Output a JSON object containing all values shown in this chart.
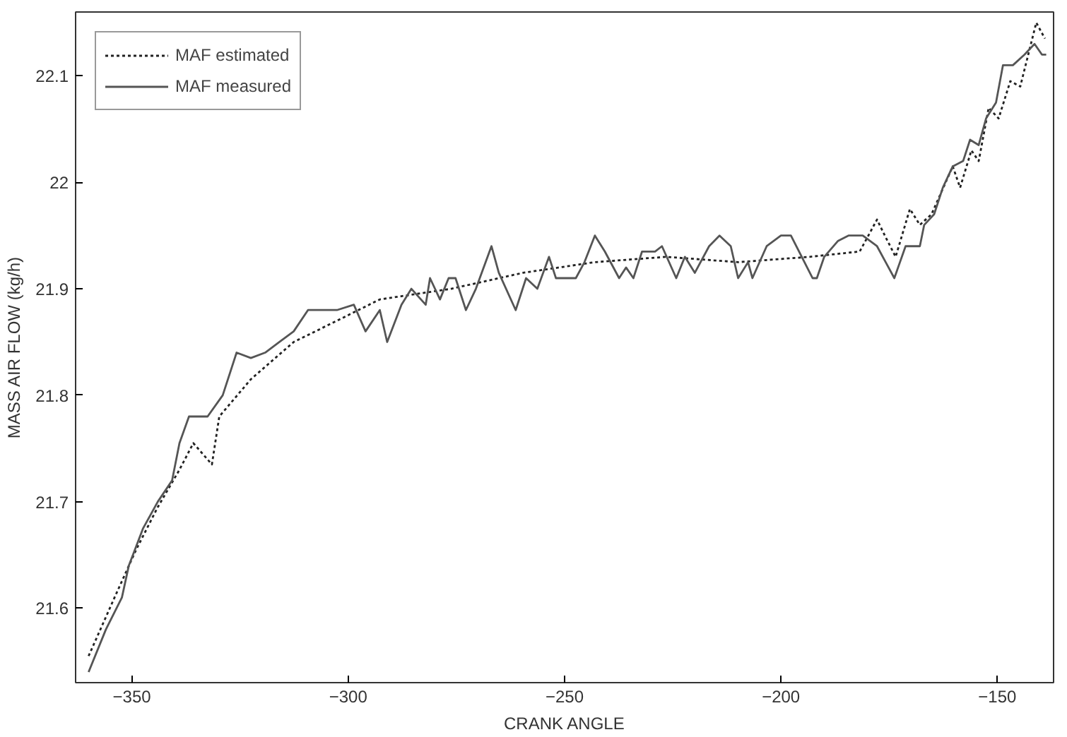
{
  "chart_data": {
    "type": "line",
    "xlabel": "CRANK ANGLE",
    "ylabel": "MASS AIR FLOW (kg/h)",
    "xlim": [
      -363,
      -137
    ],
    "ylim": [
      21.53,
      22.16
    ],
    "xticks": [
      -350,
      -300,
      -250,
      -200,
      -150
    ],
    "yticks": [
      21.6,
      21.7,
      21.8,
      21.9,
      22,
      22.1
    ],
    "grid": false,
    "legend": "top left",
    "marker": "none",
    "series": [
      {
        "name": "MAF estimated",
        "color": "#222222",
        "line_style": "dotted",
        "x": [
          -360,
          -354,
          -349,
          -344,
          -339,
          -335.8,
          -331.5,
          -329.8,
          -322.5,
          -312.6,
          -302.6,
          -292.7,
          -276.2,
          -259.6,
          -243,
          -226.5,
          -209.9,
          -193.4,
          -181.8,
          -177.8,
          -176,
          -173.5,
          -170.2,
          -167.9,
          -165.2,
          -160.3,
          -158.6,
          -156,
          -154.3,
          -152,
          -149.7,
          -147,
          -144.7,
          -141,
          -139
        ],
        "values": [
          21.555,
          21.61,
          21.655,
          21.695,
          21.73,
          21.755,
          21.735,
          21.78,
          21.815,
          21.85,
          21.87,
          21.89,
          21.9,
          21.915,
          21.925,
          21.93,
          21.925,
          21.93,
          21.935,
          21.965,
          21.95,
          21.93,
          21.975,
          21.96,
          21.97,
          22.015,
          21.995,
          22.03,
          22.02,
          22.07,
          22.06,
          22.095,
          22.09,
          22.15,
          22.135
        ]
      },
      {
        "name": "MAF measured",
        "color": "#555555",
        "line_style": "solid",
        "x": [
          -360,
          -356,
          -352.3,
          -350.7,
          -347.4,
          -344,
          -340.7,
          -339,
          -336.8,
          -332.5,
          -329,
          -325.8,
          -322.5,
          -319.2,
          -315.9,
          -312.6,
          -309.3,
          -302.6,
          -298.7,
          -296,
          -292.7,
          -291,
          -287.7,
          -285.4,
          -282.1,
          -281.1,
          -278.8,
          -276.8,
          -275.2,
          -272.8,
          -270.5,
          -266.9,
          -265.2,
          -261.3,
          -258.9,
          -256.3,
          -253.6,
          -252,
          -247.4,
          -245.4,
          -243,
          -240.7,
          -237.4,
          -235.8,
          -234.1,
          -232.1,
          -229.1,
          -227.5,
          -224.2,
          -222.2,
          -219.9,
          -216.6,
          -214.2,
          -211.6,
          -209.9,
          -207.6,
          -206.6,
          -203.3,
          -200,
          -197.7,
          -192.7,
          -191.7,
          -190,
          -186.8,
          -184.4,
          -181.1,
          -177.8,
          -175.8,
          -173.8,
          -171.2,
          -167.9,
          -166.9,
          -164.6,
          -162.6,
          -160.3,
          -157.9,
          -156.3,
          -154.3,
          -152.6,
          -150.3,
          -148.7,
          -146.4,
          -143.7,
          -141.4,
          -139.7,
          -138.7
        ],
        "values": [
          21.54,
          21.58,
          21.61,
          21.64,
          21.675,
          21.7,
          21.72,
          21.755,
          21.78,
          21.78,
          21.8,
          21.84,
          21.835,
          21.84,
          21.85,
          21.86,
          21.88,
          21.88,
          21.885,
          21.86,
          21.88,
          21.85,
          21.885,
          21.9,
          21.885,
          21.91,
          21.89,
          21.91,
          21.91,
          21.88,
          21.9,
          21.94,
          21.915,
          21.88,
          21.91,
          21.9,
          21.93,
          21.91,
          21.91,
          21.925,
          21.95,
          21.935,
          21.91,
          21.92,
          21.91,
          21.935,
          21.935,
          21.94,
          21.91,
          21.93,
          21.915,
          21.94,
          21.95,
          21.94,
          21.91,
          21.925,
          21.91,
          21.94,
          21.95,
          21.95,
          21.91,
          21.91,
          21.93,
          21.945,
          21.95,
          21.95,
          21.94,
          21.925,
          21.91,
          21.94,
          21.94,
          21.96,
          21.97,
          21.995,
          22.015,
          22.02,
          22.04,
          22.035,
          22.06,
          22.075,
          22.11,
          22.11,
          22.12,
          22.13,
          22.12,
          22.12
        ]
      }
    ]
  }
}
